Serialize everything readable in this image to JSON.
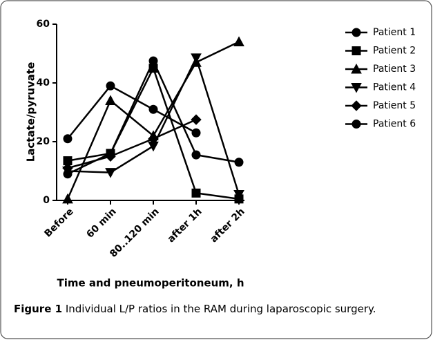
{
  "chart_data": {
    "type": "line",
    "ylabel": "Lactate/pyruvate",
    "xlabel": "Time and pneumoperitoneum, h",
    "categories": [
      "Before",
      "60 min",
      "80..120 min",
      "after 1h",
      "after 2h"
    ],
    "ylim": [
      0,
      60
    ],
    "yticks": [
      0,
      20,
      40,
      60
    ],
    "series": [
      {
        "name": "Patient 1",
        "color": "#000000",
        "marker": "circle",
        "values": [
          21,
          39,
          31,
          23,
          null
        ]
      },
      {
        "name": "Patient 2",
        "color": "#000000",
        "marker": "square",
        "values": [
          13.5,
          16,
          45,
          2.5,
          0.5
        ]
      },
      {
        "name": "Patient 3",
        "color": "#000000",
        "marker": "triangle-up",
        "values": [
          0.5,
          34,
          22,
          47,
          54
        ]
      },
      {
        "name": "Patient 4",
        "color": "#000000",
        "marker": "triangle-down",
        "values": [
          10,
          9.5,
          18.5,
          48.5,
          2
        ]
      },
      {
        "name": "Patient 5",
        "color": "#000000",
        "marker": "diamond",
        "values": [
          11,
          15,
          21,
          27.5,
          null
        ]
      },
      {
        "name": "Patient 6",
        "color": "#000000",
        "marker": "circle",
        "values": [
          9,
          16,
          47.5,
          15.5,
          13
        ]
      }
    ]
  },
  "caption": {
    "label": "Figure 1",
    "text": "Individual L/P ratios in the RAM during laparoscopic surgery."
  }
}
